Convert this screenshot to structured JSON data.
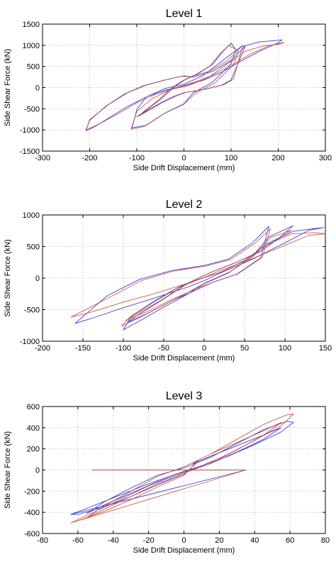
{
  "chart_data": [
    {
      "type": "line",
      "title": "Level 1",
      "xlabel": "Side Drift Displacement (mm)",
      "ylabel": "Side Shear Force (kN)",
      "xlim": [
        -300,
        300
      ],
      "ylim": [
        -1500,
        1500
      ],
      "xticks": [
        -300,
        -200,
        -100,
        0,
        100,
        200,
        300
      ],
      "yticks": [
        -1500,
        -1000,
        -500,
        0,
        500,
        1000,
        1500
      ],
      "grid": true,
      "series": [
        {
          "color": "#2b2bd6",
          "x": [
            -208,
            -190,
            -160,
            -120,
            -80,
            -40,
            0,
            40,
            80,
            120,
            160,
            200,
            208,
            200,
            160,
            120,
            80,
            40,
            0,
            -40,
            -80,
            -100,
            -110,
            -80,
            -40,
            0,
            20,
            60,
            100,
            110,
            100,
            80,
            60,
            30,
            0,
            -20,
            -50,
            -80,
            -100,
            -80,
            -50,
            -20,
            0,
            40,
            80,
            100,
            130,
            100,
            60,
            20,
            0,
            -40,
            -80,
            -120,
            -160,
            -200,
            -208
          ],
          "y": [
            -1020,
            -930,
            -720,
            -450,
            -220,
            -60,
            40,
            170,
            360,
            620,
            860,
            1060,
            1130,
            1120,
            1080,
            960,
            620,
            280,
            80,
            -20,
            -220,
            -520,
            -950,
            -890,
            -600,
            -380,
            -120,
            120,
            560,
            900,
            1050,
            820,
            540,
            330,
            170,
            20,
            -280,
            -540,
            -690,
            -560,
            -360,
            -200,
            -120,
            -50,
            60,
            180,
            980,
            640,
            380,
            250,
            280,
            180,
            60,
            -120,
            -400,
            -760,
            -1020
          ]
        },
        {
          "color": "#c24a3a",
          "x": [
            -208,
            -180,
            -140,
            -100,
            -60,
            -20,
            20,
            60,
            100,
            140,
            180,
            212,
            205,
            170,
            130,
            90,
            50,
            10,
            -30,
            -70,
            -100,
            -112,
            -85,
            -45,
            0,
            25,
            65,
            105,
            115,
            95,
            75,
            55,
            25,
            -5,
            -25,
            -55,
            -85,
            -95,
            -75,
            -45,
            -15,
            5,
            45,
            85,
            105,
            125,
            95,
            55,
            15,
            -5,
            -45,
            -85,
            -125,
            -165,
            -200,
            -208
          ],
          "y": [
            -1000,
            -860,
            -620,
            -360,
            -160,
            -10,
            120,
            290,
            520,
            790,
            990,
            1070,
            1030,
            990,
            860,
            540,
            230,
            50,
            -50,
            -280,
            -560,
            -980,
            -920,
            -630,
            -390,
            -130,
            100,
            540,
            870,
            1000,
            780,
            510,
            310,
            150,
            0,
            -300,
            -560,
            -670,
            -540,
            -350,
            -190,
            -110,
            -40,
            70,
            200,
            1000,
            660,
            390,
            260,
            270,
            170,
            50,
            -140,
            -430,
            -780,
            -1000
          ]
        }
      ]
    },
    {
      "type": "line",
      "title": "Level 2",
      "xlabel": "Side Drift Displacement (mm)",
      "ylabel": "Side Shear Force (kN)",
      "xlim": [
        -200,
        150
      ],
      "ylim": [
        -1000,
        1000
      ],
      "xticks": [
        -200,
        -150,
        -100,
        -50,
        0,
        50,
        100,
        150
      ],
      "yticks": [
        -1000,
        -500,
        0,
        500,
        1000
      ],
      "grid": true,
      "series": [
        {
          "color": "#2b2bd6",
          "x": [
            -160,
            -140,
            -100,
            -60,
            -20,
            0,
            20,
            60,
            100,
            130,
            148,
            140,
            110,
            80,
            50,
            20,
            0,
            -30,
            -60,
            -90,
            -100,
            -80,
            -50,
            -20,
            0,
            30,
            60,
            80,
            110,
            95,
            70,
            40,
            10,
            -20,
            -50,
            -80,
            -95,
            -70,
            -40,
            -10,
            10,
            40,
            70,
            80,
            60,
            30,
            0,
            -40,
            -80,
            -120,
            -160
          ],
          "y": [
            -720,
            -640,
            -470,
            -310,
            -140,
            -40,
            80,
            300,
            560,
            760,
            800,
            790,
            740,
            560,
            280,
            90,
            10,
            -130,
            -350,
            -600,
            -820,
            -680,
            -460,
            -250,
            -90,
            80,
            350,
            650,
            830,
            660,
            430,
            250,
            100,
            -80,
            -330,
            -570,
            -700,
            -560,
            -360,
            -190,
            -70,
            60,
            320,
            820,
            560,
            300,
            200,
            120,
            -20,
            -280,
            -720
          ]
        },
        {
          "color": "#c24a3a",
          "x": [
            -165,
            -140,
            -100,
            -60,
            -20,
            0,
            20,
            60,
            100,
            130,
            150,
            138,
            108,
            78,
            48,
            18,
            -2,
            -32,
            -62,
            -92,
            -102,
            -82,
            -52,
            -22,
            2,
            32,
            62,
            82,
            108,
            92,
            68,
            38,
            8,
            -22,
            -52,
            -82,
            -97,
            -72,
            -42,
            -12,
            12,
            42,
            72,
            82,
            62,
            32,
            2,
            -38,
            -78,
            -118,
            -165
          ],
          "y": [
            -620,
            -540,
            -380,
            -240,
            -80,
            10,
            120,
            310,
            520,
            680,
            700,
            720,
            700,
            530,
            260,
            80,
            0,
            -150,
            -380,
            -620,
            -760,
            -640,
            -440,
            -240,
            -70,
            100,
            360,
            640,
            760,
            620,
            410,
            240,
            90,
            -90,
            -340,
            -560,
            -670,
            -540,
            -350,
            -180,
            -60,
            70,
            330,
            780,
            540,
            290,
            190,
            110,
            -40,
            -310,
            -620
          ]
        }
      ]
    },
    {
      "type": "line",
      "title": "Level 3",
      "xlabel": "Side Drift Displacement (mm)",
      "ylabel": "Side Shear Force (kN)",
      "xlim": [
        -80,
        80
      ],
      "ylim": [
        -600,
        600
      ],
      "xticks": [
        -80,
        -60,
        -40,
        -20,
        0,
        20,
        40,
        60,
        80
      ],
      "yticks": [
        -600,
        -400,
        -200,
        0,
        200,
        400,
        600
      ],
      "grid": true,
      "series": [
        {
          "color": "#2b2bd6",
          "x": [
            -52,
            35,
            -64,
            -50,
            -35,
            -20,
            -5,
            10,
            25,
            40,
            55,
            62,
            58,
            45,
            30,
            15,
            0,
            -15,
            -30,
            -45,
            -55,
            -45,
            -30,
            -15,
            0,
            15,
            30,
            45,
            55,
            45,
            30,
            15,
            5,
            8,
            0,
            -15,
            -30,
            -45,
            -60,
            -64
          ],
          "y": [
            0,
            0,
            -420,
            -330,
            -230,
            -130,
            -40,
            40,
            130,
            240,
            360,
            450,
            460,
            380,
            250,
            120,
            20,
            -50,
            -170,
            -300,
            -410,
            -330,
            -220,
            -110,
            -20,
            60,
            170,
            290,
            400,
            330,
            230,
            130,
            60,
            80,
            -40,
            -140,
            -250,
            -350,
            -420,
            -420
          ]
        },
        {
          "color": "#c24a3a",
          "x": [
            -52,
            35,
            -64,
            -50,
            -35,
            -20,
            -5,
            10,
            25,
            40,
            55,
            62,
            58,
            45,
            30,
            15,
            0,
            -15,
            -30,
            -45,
            -55,
            -45,
            -30,
            -15,
            0,
            15,
            30,
            45,
            55,
            45,
            30,
            15,
            5,
            8,
            0,
            -15,
            -30,
            -45,
            -60,
            -64
          ],
          "y": [
            0,
            0,
            -500,
            -390,
            -270,
            -150,
            -50,
            40,
            150,
            280,
            420,
            530,
            520,
            430,
            290,
            150,
            30,
            -60,
            -200,
            -340,
            -450,
            -370,
            -250,
            -130,
            -30,
            60,
            190,
            330,
            450,
            370,
            260,
            150,
            70,
            90,
            -50,
            -160,
            -280,
            -390,
            -480,
            -500
          ]
        }
      ]
    }
  ]
}
